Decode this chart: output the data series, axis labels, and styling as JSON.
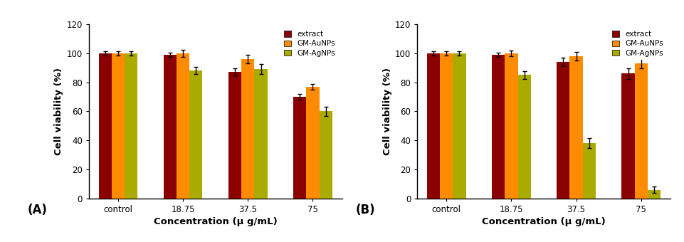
{
  "panel_A": {
    "categories": [
      "control",
      "18.75",
      "37.5",
      "75"
    ],
    "extract": [
      100,
      99,
      87,
      70
    ],
    "gm_aunps": [
      100,
      100,
      96,
      77
    ],
    "gm_agnps": [
      100,
      88,
      89,
      60
    ],
    "extract_err": [
      1.5,
      1.5,
      2.5,
      2.0
    ],
    "gm_aunps_err": [
      1.5,
      2.5,
      3.0,
      2.0
    ],
    "gm_agnps_err": [
      1.5,
      2.5,
      3.5,
      3.0
    ],
    "label": "(A)"
  },
  "panel_B": {
    "categories": [
      "control",
      "18.75",
      "37.5",
      "75"
    ],
    "extract": [
      100,
      99,
      94,
      86
    ],
    "gm_aunps": [
      100,
      100,
      98,
      93
    ],
    "gm_agnps": [
      100,
      85,
      38,
      6
    ],
    "extract_err": [
      1.5,
      1.5,
      3.0,
      3.5
    ],
    "gm_aunps_err": [
      1.5,
      2.0,
      3.0,
      3.5
    ],
    "gm_agnps_err": [
      1.5,
      2.5,
      3.5,
      2.0
    ],
    "label": "(B)"
  },
  "colors": {
    "extract": "#8B0000",
    "gm_aunps": "#FF8C00",
    "gm_agnps": "#AAAA00"
  },
  "ylim": [
    0,
    120
  ],
  "yticks": [
    0,
    20,
    40,
    60,
    80,
    100,
    120
  ],
  "ylabel": "Cell viability (%)",
  "xlabel": "Concentration (μ g/mL)",
  "legend_labels": [
    "extract",
    "GM-AuNPs",
    "GM-AgNPs"
  ],
  "bar_width": 0.2,
  "background_color": "#ffffff"
}
